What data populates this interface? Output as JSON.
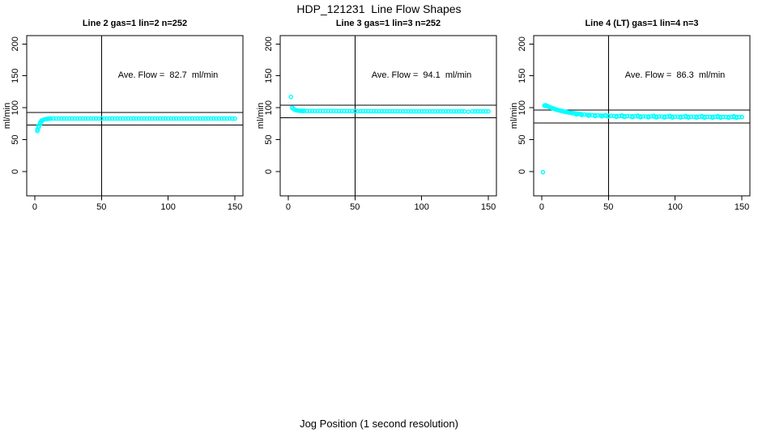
{
  "title": "HDP_121231  Line Flow Shapes",
  "xlabel": "Jog Position (1 second resolution)",
  "colors": {
    "marker": "#00FFFF",
    "axis": "#000000",
    "background": "#FFFFFF"
  },
  "chart_data": [
    {
      "type": "scatter",
      "title": "Line 2 gas=1 lin=2 n=252",
      "annotation": "Ave. Flow =  82.7  ml/min",
      "ave_flow_ml_min": 82.7,
      "n": 252,
      "ylabel": "ml/min",
      "xticks": [
        0,
        50,
        100,
        150
      ],
      "yticks": [
        0,
        50,
        100,
        150,
        200
      ],
      "xlim": [
        -6,
        156
      ],
      "ylim": [
        -38,
        213
      ],
      "grid": false,
      "vline_x": 50,
      "hlines": [
        92.7,
        72.7
      ],
      "points": [
        [
          2,
          63.5
        ],
        [
          2,
          66
        ],
        [
          3,
          69.5
        ],
        [
          3,
          72
        ],
        [
          4,
          74.5
        ],
        [
          4,
          76.5
        ],
        [
          5,
          78
        ],
        [
          5,
          79.5
        ],
        [
          6,
          80.6
        ],
        [
          7,
          81.4
        ],
        [
          8,
          82
        ],
        [
          9,
          82.4
        ],
        [
          10,
          82.7
        ],
        [
          11,
          82.9
        ],
        [
          12,
          83
        ],
        [
          14,
          83.2
        ],
        [
          16,
          83
        ],
        [
          18,
          83.2
        ],
        [
          20,
          83
        ],
        [
          22,
          83.2
        ],
        [
          24,
          83
        ],
        [
          26,
          83.2
        ],
        [
          28,
          83
        ],
        [
          30,
          83.2
        ],
        [
          32,
          83
        ],
        [
          34,
          83.2
        ],
        [
          36,
          83
        ],
        [
          38,
          83.2
        ],
        [
          40,
          83
        ],
        [
          42,
          83.2
        ],
        [
          44,
          83
        ],
        [
          46,
          83.2
        ],
        [
          48,
          83
        ],
        [
          50,
          83.2
        ],
        [
          52,
          83
        ],
        [
          54,
          83.2
        ],
        [
          56,
          83
        ],
        [
          58,
          83.2
        ],
        [
          60,
          83
        ],
        [
          62,
          83.2
        ],
        [
          64,
          83
        ],
        [
          66,
          83.2
        ],
        [
          68,
          83
        ],
        [
          70,
          83.2
        ],
        [
          72,
          83
        ],
        [
          74,
          83.2
        ],
        [
          76,
          83
        ],
        [
          78,
          83.2
        ],
        [
          80,
          83
        ],
        [
          82,
          83.2
        ],
        [
          84,
          83
        ],
        [
          86,
          83.2
        ],
        [
          88,
          83
        ],
        [
          90,
          83.2
        ],
        [
          92,
          83
        ],
        [
          94,
          83.2
        ],
        [
          96,
          83
        ],
        [
          98,
          83.2
        ],
        [
          100,
          83
        ],
        [
          102,
          83.2
        ],
        [
          104,
          83
        ],
        [
          106,
          83.2
        ],
        [
          108,
          83
        ],
        [
          110,
          83.2
        ],
        [
          112,
          83
        ],
        [
          114,
          83.2
        ],
        [
          116,
          83
        ],
        [
          118,
          83.2
        ],
        [
          120,
          83
        ],
        [
          122,
          83.2
        ],
        [
          124,
          83
        ],
        [
          126,
          83.2
        ],
        [
          128,
          83
        ],
        [
          130,
          83.2
        ],
        [
          132,
          83
        ],
        [
          134,
          83.2
        ],
        [
          136,
          83
        ],
        [
          138,
          83.2
        ],
        [
          140,
          83
        ],
        [
          142,
          83.2
        ],
        [
          144,
          83
        ],
        [
          146,
          83.2
        ],
        [
          148,
          83
        ],
        [
          150,
          83.1
        ]
      ]
    },
    {
      "type": "scatter",
      "title": "Line 3 gas=1 lin=3 n=252",
      "annotation": "Ave. Flow =  94.1  ml/min",
      "ave_flow_ml_min": 94.1,
      "n": 252,
      "ylabel": "ml/min",
      "xticks": [
        0,
        50,
        100,
        150
      ],
      "yticks": [
        0,
        50,
        100,
        150,
        200
      ],
      "xlim": [
        -6,
        156
      ],
      "ylim": [
        -38,
        213
      ],
      "grid": false,
      "vline_x": 50,
      "hlines": [
        104.1,
        84.1
      ],
      "points": [
        [
          2,
          117
        ],
        [
          3,
          100
        ],
        [
          4,
          98
        ],
        [
          5,
          96.8
        ],
        [
          6,
          96.1
        ],
        [
          7,
          95.7
        ],
        [
          8,
          95.4
        ],
        [
          9,
          95.2
        ],
        [
          10,
          95.1
        ],
        [
          11,
          95
        ],
        [
          12,
          95
        ],
        [
          14,
          95
        ],
        [
          16,
          94.9
        ],
        [
          18,
          94.9
        ],
        [
          20,
          94.9
        ],
        [
          22,
          94.9
        ],
        [
          24,
          94.9
        ],
        [
          26,
          94.8
        ],
        [
          28,
          94.8
        ],
        [
          30,
          94.8
        ],
        [
          32,
          94.8
        ],
        [
          34,
          94.8
        ],
        [
          36,
          94.8
        ],
        [
          38,
          94.7
        ],
        [
          40,
          94.7
        ],
        [
          42,
          94.7
        ],
        [
          44,
          94.7
        ],
        [
          46,
          94.7
        ],
        [
          48,
          94.7
        ],
        [
          50,
          94.7
        ],
        [
          52,
          94.6
        ],
        [
          54,
          94.6
        ],
        [
          56,
          94.6
        ],
        [
          58,
          94.6
        ],
        [
          60,
          94.6
        ],
        [
          62,
          94.6
        ],
        [
          64,
          94.6
        ],
        [
          66,
          94.6
        ],
        [
          68,
          94.5
        ],
        [
          70,
          94.5
        ],
        [
          72,
          94.5
        ],
        [
          74,
          94.5
        ],
        [
          76,
          94.5
        ],
        [
          78,
          94.5
        ],
        [
          80,
          94.5
        ],
        [
          82,
          94.5
        ],
        [
          84,
          94.5
        ],
        [
          86,
          94.4
        ],
        [
          88,
          94.4
        ],
        [
          90,
          94.4
        ],
        [
          92,
          94.4
        ],
        [
          94,
          94.4
        ],
        [
          96,
          94.4
        ],
        [
          98,
          94.4
        ],
        [
          100,
          94.4
        ],
        [
          102,
          94.4
        ],
        [
          104,
          94.4
        ],
        [
          106,
          94.3
        ],
        [
          108,
          94.3
        ],
        [
          110,
          94.3
        ],
        [
          112,
          94.3
        ],
        [
          114,
          94.3
        ],
        [
          116,
          94.3
        ],
        [
          118,
          94.3
        ],
        [
          120,
          94.3
        ],
        [
          122,
          94.3
        ],
        [
          124,
          94.3
        ],
        [
          126,
          94.3
        ],
        [
          128,
          94.3
        ],
        [
          130,
          94.3
        ],
        [
          132,
          94.3
        ],
        [
          135,
          93.9
        ],
        [
          138,
          94.3
        ],
        [
          140,
          94.3
        ],
        [
          142,
          94.3
        ],
        [
          144,
          94.3
        ],
        [
          146,
          94.3
        ],
        [
          148,
          94.3
        ],
        [
          150,
          94.3
        ]
      ]
    },
    {
      "type": "scatter",
      "title": "Line 4 (LT) gas=1 lin=4 n=3",
      "annotation": "Ave. Flow =  86.3  ml/min",
      "ave_flow_ml_min": 86.3,
      "n": 3,
      "ylabel": "ml/min",
      "xticks": [
        0,
        50,
        100,
        150
      ],
      "yticks": [
        0,
        50,
        100,
        150,
        200
      ],
      "xlim": [
        -6,
        156
      ],
      "ylim": [
        -38,
        213
      ],
      "grid": false,
      "vline_x": 50,
      "hlines": [
        96.3,
        76.3
      ],
      "points": [
        [
          1,
          -1
        ],
        [
          2,
          103.5
        ],
        [
          3,
          103.8
        ],
        [
          3,
          102.8
        ],
        [
          4,
          102.8
        ],
        [
          5,
          101.9
        ],
        [
          6,
          101
        ],
        [
          7,
          100.1
        ],
        [
          8,
          99.3
        ],
        [
          9,
          98.5
        ],
        [
          10,
          97.8
        ],
        [
          11,
          97.1
        ],
        [
          12,
          96.5
        ],
        [
          13,
          95.9
        ],
        [
          14,
          95.4
        ],
        [
          15,
          94.9
        ],
        [
          16,
          94.4
        ],
        [
          17,
          94
        ],
        [
          18,
          93.5
        ],
        [
          19,
          93.1
        ],
        [
          20,
          92.7
        ],
        [
          21,
          92.4
        ],
        [
          22,
          92
        ],
        [
          23,
          91.7
        ],
        [
          24,
          91.4
        ],
        [
          25,
          91.1
        ],
        [
          26,
          90.8
        ],
        [
          27,
          90.5
        ],
        [
          28,
          90.3
        ],
        [
          29,
          90
        ],
        [
          30,
          89.8
        ],
        [
          32,
          89.4
        ],
        [
          34,
          89
        ],
        [
          36,
          88.7
        ],
        [
          38,
          88.4
        ],
        [
          40,
          88.2
        ],
        [
          42,
          88
        ],
        [
          44,
          87.8
        ],
        [
          46,
          87.6
        ],
        [
          48,
          87.5
        ],
        [
          50,
          87.4
        ],
        [
          52,
          87.2
        ],
        [
          54,
          87.1
        ],
        [
          56,
          87
        ],
        [
          58,
          86.9
        ],
        [
          60,
          86.9
        ],
        [
          62,
          86.8
        ],
        [
          64,
          86.7
        ],
        [
          66,
          86.7
        ],
        [
          68,
          86.6
        ],
        [
          70,
          86.6
        ],
        [
          72,
          86.5
        ],
        [
          74,
          86.5
        ],
        [
          76,
          86.4
        ],
        [
          78,
          86.4
        ],
        [
          80,
          86.3
        ],
        [
          82,
          86.3
        ],
        [
          84,
          86.3
        ],
        [
          86,
          86.2
        ],
        [
          88,
          86.2
        ],
        [
          90,
          86.2
        ],
        [
          92,
          86.1
        ],
        [
          94,
          86.1
        ],
        [
          96,
          86.1
        ],
        [
          98,
          86
        ],
        [
          100,
          86
        ],
        [
          102,
          86
        ],
        [
          104,
          86
        ],
        [
          106,
          85.9
        ],
        [
          108,
          85.9
        ],
        [
          110,
          85.9
        ],
        [
          112,
          85.9
        ],
        [
          114,
          85.8
        ],
        [
          116,
          85.8
        ],
        [
          118,
          85.8
        ],
        [
          120,
          85.8
        ],
        [
          122,
          85.7
        ],
        [
          124,
          85.7
        ],
        [
          126,
          85.7
        ],
        [
          128,
          85.7
        ],
        [
          130,
          85.7
        ],
        [
          132,
          85.6
        ],
        [
          134,
          85.6
        ],
        [
          136,
          85.6
        ],
        [
          138,
          85.6
        ],
        [
          140,
          85.6
        ],
        [
          142,
          85.5
        ],
        [
          144,
          85.5
        ],
        [
          146,
          85.5
        ],
        [
          148,
          85.5
        ],
        [
          150,
          85.5
        ],
        [
          26,
          89.5
        ],
        [
          30,
          88.6
        ],
        [
          35,
          87.6
        ],
        [
          40,
          87
        ],
        [
          45,
          86.6
        ],
        [
          50,
          86.3
        ],
        [
          56,
          85.9
        ],
        [
          62,
          85.6
        ],
        [
          68,
          85.4
        ],
        [
          74,
          85.2
        ],
        [
          80,
          85.1
        ],
        [
          86,
          85
        ],
        [
          92,
          84.9
        ],
        [
          98,
          84.8
        ],
        [
          104,
          84.8
        ],
        [
          110,
          84.7
        ],
        [
          116,
          84.7
        ],
        [
          122,
          84.6
        ],
        [
          128,
          84.6
        ],
        [
          134,
          84.5
        ],
        [
          140,
          84.5
        ],
        [
          146,
          84.5
        ],
        [
          48,
          88.4
        ],
        [
          60,
          87.9
        ],
        [
          72,
          87.5
        ],
        [
          84,
          87.3
        ],
        [
          96,
          87.1
        ],
        [
          108,
          87
        ],
        [
          120,
          86.8
        ],
        [
          132,
          86.7
        ],
        [
          144,
          86.6
        ]
      ]
    }
  ]
}
